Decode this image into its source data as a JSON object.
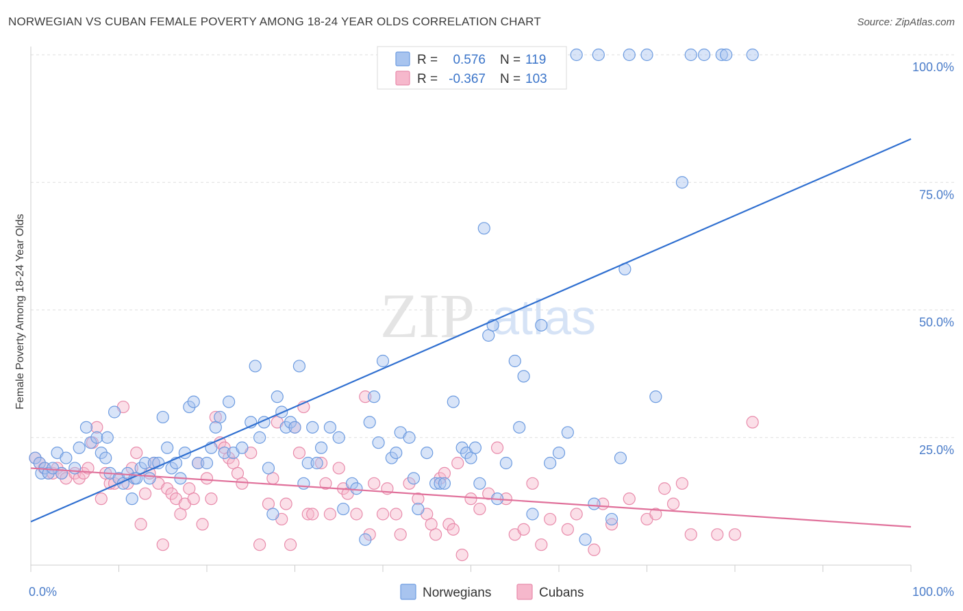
{
  "title": "NORWEGIAN VS CUBAN FEMALE POVERTY AMONG 18-24 YEAR OLDS CORRELATION CHART",
  "source": "Source: ZipAtlas.com",
  "watermark": {
    "zip": "ZIP",
    "atlas": "atlas"
  },
  "colors": {
    "blue_fill": "#a8c4ef",
    "blue_stroke": "#6c9be0",
    "blue_line": "#2f6fd0",
    "pink_fill": "#f6b8cc",
    "pink_stroke": "#e88aaa",
    "pink_line": "#e0709a",
    "grid": "#dddddd",
    "tick_text": "#4a7cc9"
  },
  "chart_data": {
    "type": "scatter",
    "xlabel": "",
    "ylabel": "Female Poverty Among 18-24 Year Olds",
    "xlim": [
      0,
      100
    ],
    "ylim": [
      0,
      100
    ],
    "x_tick_labels": [
      {
        "v": 0,
        "label": "0.0%"
      },
      {
        "v": 100,
        "label": "100.0%"
      }
    ],
    "y_tick_labels": [
      {
        "v": 25,
        "label": "25.0%"
      },
      {
        "v": 50,
        "label": "50.0%"
      },
      {
        "v": 75,
        "label": "75.0%"
      },
      {
        "v": 100,
        "label": "100.0%"
      }
    ],
    "grid": true,
    "legend_placement": "top-center",
    "legend": [
      {
        "series": "Norwegians",
        "r_label": "R =",
        "r": "0.576",
        "n_label": "N =",
        "n": "119"
      },
      {
        "series": "Cubans",
        "r_label": "R =",
        "r": "-0.367",
        "n_label": "N =",
        "n": "103"
      }
    ],
    "series": [
      {
        "name": "Norwegians",
        "color": "#a8c4ef",
        "trend": {
          "x0": 0,
          "y0": 8.5,
          "x1": 100,
          "y1": 83.5
        },
        "points": [
          [
            0.5,
            21
          ],
          [
            1,
            20
          ],
          [
            1.2,
            18
          ],
          [
            1.6,
            19
          ],
          [
            2,
            18
          ],
          [
            2.5,
            19
          ],
          [
            3,
            22
          ],
          [
            3.5,
            18
          ],
          [
            4,
            21
          ],
          [
            5,
            19
          ],
          [
            5.5,
            23
          ],
          [
            6.3,
            27
          ],
          [
            6.8,
            24
          ],
          [
            7.5,
            25
          ],
          [
            8,
            22
          ],
          [
            8.5,
            21
          ],
          [
            8.7,
            25
          ],
          [
            9,
            18
          ],
          [
            9.5,
            30
          ],
          [
            10,
            17
          ],
          [
            10.5,
            16
          ],
          [
            11,
            18
          ],
          [
            11.5,
            13
          ],
          [
            11.8,
            17
          ],
          [
            12,
            17
          ],
          [
            12.5,
            19
          ],
          [
            13,
            20
          ],
          [
            13.5,
            17
          ],
          [
            14,
            20
          ],
          [
            14.5,
            20
          ],
          [
            15,
            29
          ],
          [
            15.5,
            23
          ],
          [
            16,
            19
          ],
          [
            16.5,
            20
          ],
          [
            17,
            17
          ],
          [
            17.5,
            22
          ],
          [
            18,
            31
          ],
          [
            18.5,
            32
          ],
          [
            19,
            20
          ],
          [
            20,
            20
          ],
          [
            20.5,
            23
          ],
          [
            21,
            27
          ],
          [
            21.5,
            29
          ],
          [
            22,
            22
          ],
          [
            22.5,
            32
          ],
          [
            23,
            22
          ],
          [
            24,
            23
          ],
          [
            25,
            28
          ],
          [
            25.5,
            39
          ],
          [
            26,
            25
          ],
          [
            26.5,
            28
          ],
          [
            27,
            19
          ],
          [
            27.5,
            10
          ],
          [
            28,
            33
          ],
          [
            28.5,
            30
          ],
          [
            29,
            27
          ],
          [
            29.5,
            28
          ],
          [
            30,
            27
          ],
          [
            30.5,
            39
          ],
          [
            31,
            16
          ],
          [
            31.5,
            20
          ],
          [
            32,
            27
          ],
          [
            32.5,
            20
          ],
          [
            33,
            23
          ],
          [
            34,
            27
          ],
          [
            35,
            25
          ],
          [
            35.5,
            11
          ],
          [
            36.5,
            16
          ],
          [
            37,
            15
          ],
          [
            38,
            5
          ],
          [
            38.5,
            28
          ],
          [
            39,
            33
          ],
          [
            39.5,
            24
          ],
          [
            40,
            40
          ],
          [
            41,
            21
          ],
          [
            41.5,
            22
          ],
          [
            42,
            26
          ],
          [
            43,
            25
          ],
          [
            43.5,
            17
          ],
          [
            44,
            11
          ],
          [
            45,
            22
          ],
          [
            46,
            16
          ],
          [
            46.5,
            16
          ],
          [
            47,
            16
          ],
          [
            48,
            32
          ],
          [
            49,
            23
          ],
          [
            49.5,
            22
          ],
          [
            50,
            21
          ],
          [
            50.5,
            23
          ],
          [
            51,
            16
          ],
          [
            52,
            45
          ],
          [
            52.5,
            47
          ],
          [
            53,
            13
          ],
          [
            54,
            20
          ],
          [
            55,
            40
          ],
          [
            55.5,
            27
          ],
          [
            56,
            37
          ],
          [
            57,
            10
          ],
          [
            58,
            47
          ],
          [
            59,
            20
          ],
          [
            60,
            22
          ],
          [
            61,
            26
          ],
          [
            63,
            5
          ],
          [
            64,
            12
          ],
          [
            66,
            9
          ],
          [
            67,
            21
          ],
          [
            67.5,
            58
          ],
          [
            70,
            100
          ],
          [
            71,
            33
          ],
          [
            74,
            75
          ],
          [
            75,
            100
          ],
          [
            76.5,
            100
          ],
          [
            78.5,
            100
          ],
          [
            79,
            100
          ],
          [
            82,
            100
          ],
          [
            60,
            100
          ],
          [
            62,
            100
          ],
          [
            64.5,
            100
          ],
          [
            68,
            100
          ],
          [
            51.5,
            66
          ]
        ]
      },
      {
        "name": "Cubans",
        "color": "#f6b8cc",
        "trend": {
          "x0": 0,
          "y0": 19,
          "x1": 100,
          "y1": 7.5
        },
        "points": [
          [
            0.5,
            21
          ],
          [
            1,
            20
          ],
          [
            1.5,
            19
          ],
          [
            2,
            18
          ],
          [
            2.5,
            18
          ],
          [
            3,
            19
          ],
          [
            3.5,
            18
          ],
          [
            4,
            17
          ],
          [
            5,
            18
          ],
          [
            5.5,
            17
          ],
          [
            6,
            18
          ],
          [
            6.5,
            19
          ],
          [
            7,
            24
          ],
          [
            7.5,
            27
          ],
          [
            8,
            13
          ],
          [
            8.5,
            18
          ],
          [
            9,
            16
          ],
          [
            9.5,
            16
          ],
          [
            10,
            17
          ],
          [
            10.5,
            31
          ],
          [
            11,
            16
          ],
          [
            11.5,
            19
          ],
          [
            12,
            22
          ],
          [
            12.5,
            8
          ],
          [
            13,
            14
          ],
          [
            13.5,
            18
          ],
          [
            14,
            20
          ],
          [
            14.5,
            16
          ],
          [
            15,
            4
          ],
          [
            15.5,
            15
          ],
          [
            16,
            14
          ],
          [
            16.5,
            13
          ],
          [
            17,
            10
          ],
          [
            17.5,
            12
          ],
          [
            18,
            15
          ],
          [
            18.5,
            13
          ],
          [
            19,
            20
          ],
          [
            19.5,
            8
          ],
          [
            20,
            17
          ],
          [
            20.5,
            13
          ],
          [
            21,
            29
          ],
          [
            21.5,
            24
          ],
          [
            22,
            23
          ],
          [
            22.5,
            21
          ],
          [
            23,
            20
          ],
          [
            23.5,
            18
          ],
          [
            24,
            16
          ],
          [
            25,
            22
          ],
          [
            26,
            4
          ],
          [
            27,
            12
          ],
          [
            27.5,
            17
          ],
          [
            28,
            28
          ],
          [
            28.5,
            9
          ],
          [
            29,
            12
          ],
          [
            29.5,
            4
          ],
          [
            30,
            27
          ],
          [
            30.5,
            22
          ],
          [
            31,
            31
          ],
          [
            31.5,
            10
          ],
          [
            32,
            10
          ],
          [
            33,
            20
          ],
          [
            33.5,
            16
          ],
          [
            34,
            10
          ],
          [
            35,
            19
          ],
          [
            35.5,
            15
          ],
          [
            36,
            14
          ],
          [
            37,
            10
          ],
          [
            38,
            33
          ],
          [
            38.5,
            6
          ],
          [
            39,
            16
          ],
          [
            40,
            10
          ],
          [
            40.5,
            15
          ],
          [
            41.5,
            10
          ],
          [
            42,
            6
          ],
          [
            43,
            16
          ],
          [
            44,
            13
          ],
          [
            45,
            10
          ],
          [
            45.5,
            8
          ],
          [
            46,
            6
          ],
          [
            46.5,
            17
          ],
          [
            47,
            18
          ],
          [
            47.5,
            8
          ],
          [
            48,
            7
          ],
          [
            48.5,
            20
          ],
          [
            49,
            2
          ],
          [
            50,
            13
          ],
          [
            51,
            11
          ],
          [
            52,
            14
          ],
          [
            53,
            23
          ],
          [
            54,
            13
          ],
          [
            55,
            6
          ],
          [
            56,
            7
          ],
          [
            57,
            16
          ],
          [
            58,
            4
          ],
          [
            59,
            9
          ],
          [
            61,
            7
          ],
          [
            62,
            10
          ],
          [
            64,
            3
          ],
          [
            65,
            12
          ],
          [
            66,
            8
          ],
          [
            68,
            13
          ],
          [
            70,
            9
          ],
          [
            71,
            10
          ],
          [
            72,
            15
          ],
          [
            73,
            12
          ],
          [
            74,
            16
          ],
          [
            75,
            6
          ],
          [
            78,
            6
          ],
          [
            80,
            6
          ],
          [
            82,
            28
          ]
        ]
      }
    ]
  },
  "bottom_legend": [
    {
      "label": "Norwegians"
    },
    {
      "label": "Cubans"
    }
  ]
}
